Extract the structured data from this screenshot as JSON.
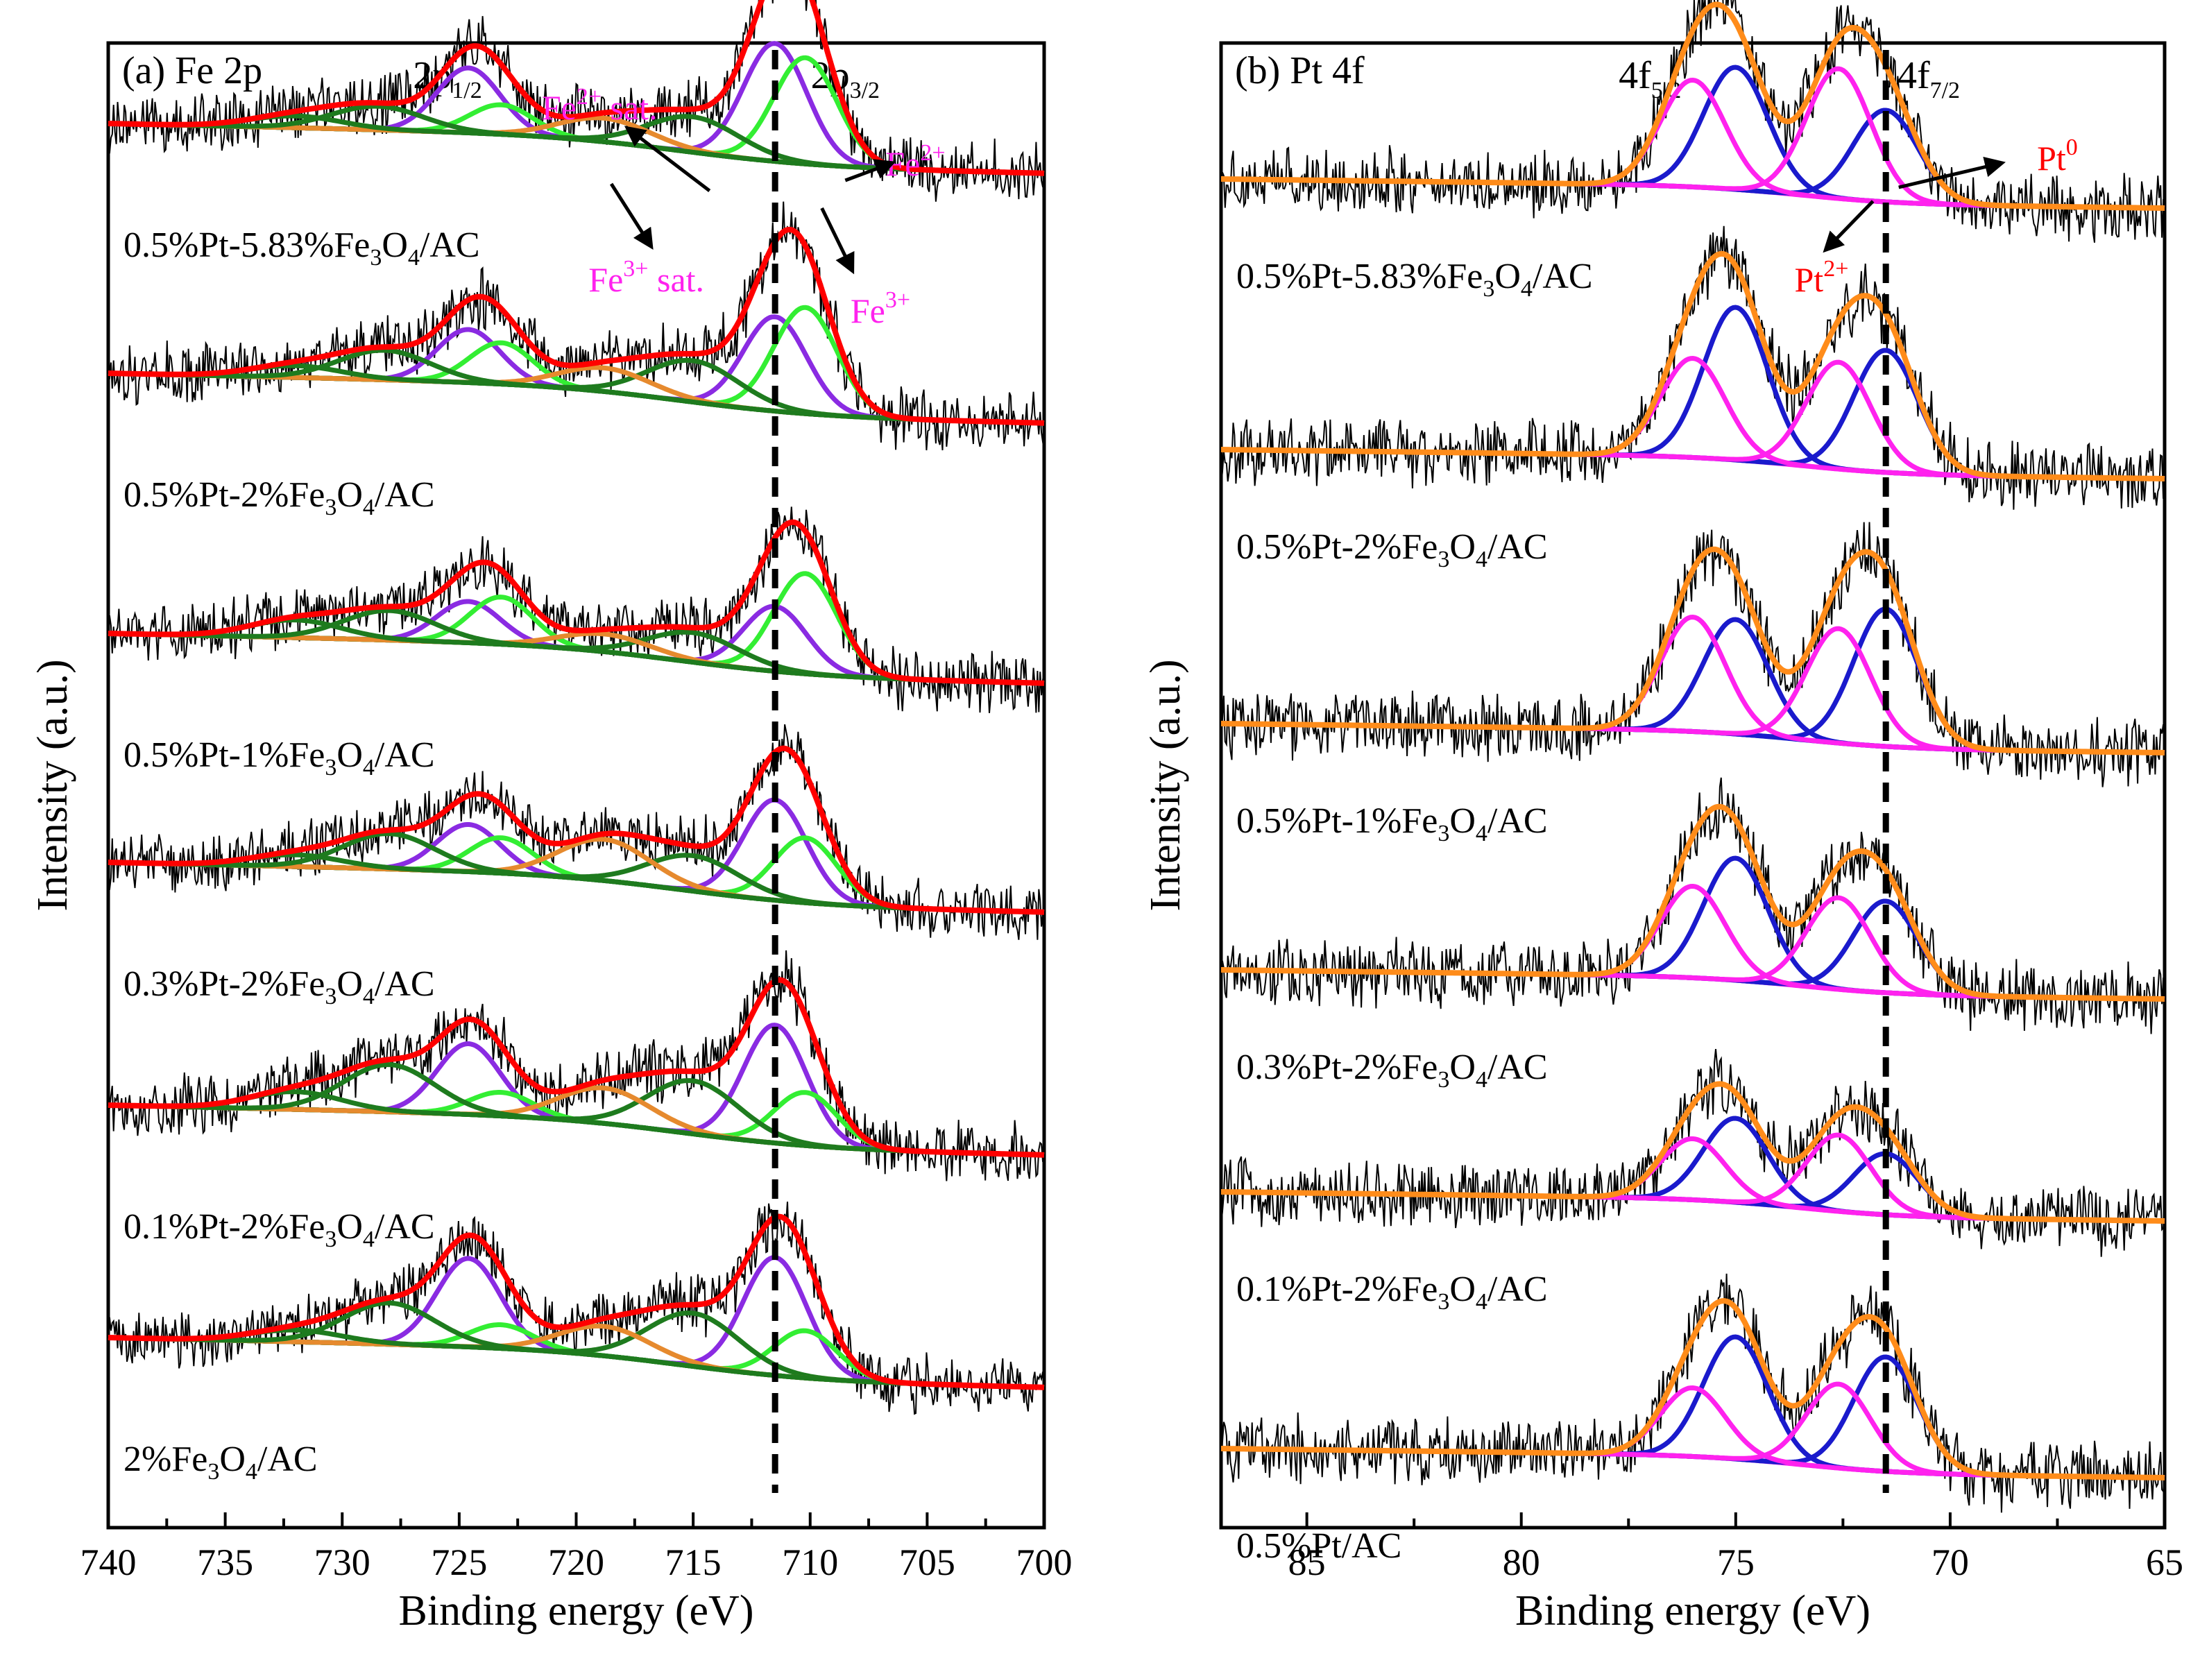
{
  "colors": {
    "raw": "#000000",
    "envelope_a": "#ff0000",
    "envelope_b": "#ff8c1a",
    "background": "#e68a2e",
    "fe2_main": "#8a2be2",
    "fe3_main": "#33ee33",
    "fe_sat": "#1e7b1e",
    "pt0": "#1a1acc",
    "pt2": "#ff22ee",
    "annot_magenta": "#ff22ee",
    "annot_red": "#ff0000"
  },
  "chart_data": [
    {
      "type": "line",
      "panel": "a",
      "title": "(a) Fe 2p",
      "xlabel": "Binding energy (eV)",
      "ylabel": "Intensity (a.u.)",
      "xlim": [
        740,
        700
      ],
      "x_reversed": true,
      "xticks": [
        "740",
        "735",
        "730",
        "725",
        "720",
        "715",
        "710",
        "705",
        "700"
      ],
      "reference_line_x": 711.5,
      "peak_labels": [
        {
          "main": "2p",
          "sub": "1/2",
          "x": 725.5
        },
        {
          "main": "2p",
          "sub": "3/2",
          "x": 708.5
        }
      ],
      "annotations": [
        {
          "main": "Fe",
          "sup": "2+",
          "suffix": " sat.",
          "color": "magenta",
          "x": 719
        },
        {
          "main": "Fe",
          "sup": "3+",
          "suffix": " sat.",
          "color": "magenta",
          "x": 717
        },
        {
          "main": "Fe",
          "sup": "2+",
          "suffix": "",
          "color": "magenta",
          "x": 705.5
        },
        {
          "main": "Fe",
          "sup": "3+",
          "suffix": "",
          "color": "magenta",
          "x": 707
        }
      ],
      "samples": [
        {
          "pre": "0.5%Pt-5.83%Fe",
          "sub": "3",
          "mid": "O",
          "sub2": "4",
          "post": "/AC",
          "peaks": [
            {
              "component": "Fe2+",
              "center": 711.5,
              "height": 1.0
            },
            {
              "component": "Fe3+",
              "center": 710.2,
              "height": 0.9
            },
            {
              "component": "Fe2+",
              "center": 724.6,
              "height": 0.55
            },
            {
              "component": "Fe3+",
              "center": 723.2,
              "height": 0.25
            },
            {
              "component": "sat",
              "center": 715.0,
              "height": 0.3
            },
            {
              "component": "sat",
              "center": 718.8,
              "height": 0.2
            },
            {
              "component": "sat",
              "center": 728.5,
              "height": 0.2
            },
            {
              "component": "sat",
              "center": 732.0,
              "height": 0.1
            }
          ]
        },
        {
          "pre": "0.5%Pt-2%Fe",
          "sub": "3",
          "mid": "O",
          "sub2": "4",
          "post": "/AC",
          "peaks": [
            {
              "component": "Fe2+",
              "center": 711.5,
              "height": 0.8
            },
            {
              "component": "Fe3+",
              "center": 710.2,
              "height": 0.9
            },
            {
              "component": "Fe2+",
              "center": 724.6,
              "height": 0.45
            },
            {
              "component": "Fe3+",
              "center": 723.2,
              "height": 0.35
            },
            {
              "component": "sat",
              "center": 715.0,
              "height": 0.35
            },
            {
              "component": "sat",
              "center": 718.8,
              "height": 0.2
            },
            {
              "component": "sat",
              "center": 728.2,
              "height": 0.25
            },
            {
              "component": "sat",
              "center": 732.0,
              "height": 0.1
            }
          ]
        },
        {
          "pre": "0.5%Pt-1%Fe",
          "sub": "3",
          "mid": "O",
          "sub2": "4",
          "post": "/AC",
          "peaks": [
            {
              "component": "Fe2+",
              "center": 711.5,
              "height": 0.55
            },
            {
              "component": "Fe3+",
              "center": 710.2,
              "height": 0.85
            },
            {
              "component": "Fe2+",
              "center": 724.6,
              "height": 0.35
            },
            {
              "component": "Fe3+",
              "center": 723.2,
              "height": 0.4
            },
            {
              "component": "sat",
              "center": 715.0,
              "height": 0.25
            },
            {
              "component": "sat",
              "center": 718.8,
              "height": 0.15
            },
            {
              "component": "sat",
              "center": 728.0,
              "height": 0.25
            },
            {
              "component": "sat",
              "center": 732.0,
              "height": 0.15
            }
          ]
        },
        {
          "pre": "0.3%Pt-2%Fe",
          "sub": "3",
          "mid": "O",
          "sub2": "4",
          "post": "/AC",
          "peaks": [
            {
              "component": "Fe2+",
              "center": 711.5,
              "height": 0.85
            },
            {
              "component": "Fe3+",
              "center": 710.2,
              "height": 0.55
            },
            {
              "component": "Fe2+",
              "center": 724.6,
              "height": 0.4
            },
            {
              "component": "Fe3+",
              "center": 723.2,
              "height": 0.3
            },
            {
              "component": "sat",
              "center": 715.0,
              "height": 0.3
            },
            {
              "component": "sat",
              "center": 718.8,
              "height": 0.35
            },
            {
              "component": "sat",
              "center": 728.0,
              "height": 0.3
            },
            {
              "component": "sat",
              "center": 732.0,
              "height": 0.1
            }
          ]
        },
        {
          "pre": "0.1%Pt-2%Fe",
          "sub": "3",
          "mid": "O",
          "sub2": "4",
          "post": "/AC",
          "peaks": [
            {
              "component": "Fe2+",
              "center": 711.5,
              "height": 1.0
            },
            {
              "component": "Fe3+",
              "center": 710.2,
              "height": 0.45
            },
            {
              "component": "Fe2+",
              "center": 724.6,
              "height": 0.6
            },
            {
              "component": "Fe3+",
              "center": 723.2,
              "height": 0.2
            },
            {
              "component": "sat",
              "center": 715.0,
              "height": 0.45
            },
            {
              "component": "sat",
              "center": 718.8,
              "height": 0.3
            },
            {
              "component": "sat",
              "center": 728.0,
              "height": 0.4
            },
            {
              "component": "sat",
              "center": 732.0,
              "height": 0.15
            }
          ]
        },
        {
          "pre": "2%Fe",
          "sub": "3",
          "mid": "O",
          "sub2": "4",
          "post": "/AC",
          "peaks": [
            {
              "component": "Fe2+",
              "center": 711.5,
              "height": 1.0
            },
            {
              "component": "Fe3+",
              "center": 710.2,
              "height": 0.4
            },
            {
              "component": "Fe2+",
              "center": 724.6,
              "height": 0.75
            },
            {
              "component": "Fe3+",
              "center": 723.2,
              "height": 0.2
            },
            {
              "component": "sat",
              "center": 715.0,
              "height": 0.45
            },
            {
              "component": "sat",
              "center": 718.8,
              "height": 0.25
            },
            {
              "component": "sat",
              "center": 728.0,
              "height": 0.35
            },
            {
              "component": "sat",
              "center": 732.0,
              "height": 0.1
            }
          ]
        }
      ]
    },
    {
      "type": "line",
      "panel": "b",
      "title": "(b) Pt 4f",
      "xlabel": "Binding energy (eV)",
      "ylabel": "Intensity (a.u.)",
      "xlim": [
        87,
        65
      ],
      "x_reversed": true,
      "xticks": [
        "85",
        "80",
        "75",
        "70",
        "65"
      ],
      "reference_line_x": 71.5,
      "peak_labels": [
        {
          "main": "4f",
          "sub": "5/2",
          "x": 77
        },
        {
          "main": "4f",
          "sub": "7/2",
          "x": 70.5
        }
      ],
      "annotations": [
        {
          "main": "Pt",
          "sup": "0",
          "suffix": "",
          "color": "red",
          "x": 67.5
        },
        {
          "main": "Pt",
          "sup": "2+",
          "suffix": "",
          "color": "red",
          "x": 73
        }
      ],
      "samples": [
        {
          "pre": "0.5%Pt-5.83%Fe",
          "sub": "3",
          "mid": "O",
          "sub2": "4",
          "post": "/AC",
          "peaks": [
            {
              "component": "Pt0",
              "center": 71.5,
              "height": 0.6
            },
            {
              "component": "Pt0",
              "center": 75.0,
              "height": 0.8
            },
            {
              "component": "Pt2+",
              "center": 72.6,
              "height": 0.85
            },
            {
              "component": "Pt2+",
              "center": 76.0,
              "height": 0.7
            }
          ]
        },
        {
          "pre": "0.5%Pt-2%Fe",
          "sub": "3",
          "mid": "O",
          "sub2": "4",
          "post": "/AC",
          "peaks": [
            {
              "component": "Pt0",
              "center": 71.5,
              "height": 0.8
            },
            {
              "component": "Pt0",
              "center": 75.0,
              "height": 1.0
            },
            {
              "component": "Pt2+",
              "center": 72.6,
              "height": 0.7
            },
            {
              "component": "Pt2+",
              "center": 76.0,
              "height": 0.65
            }
          ]
        },
        {
          "pre": "0.5%Pt-1%Fe",
          "sub": "3",
          "mid": "O",
          "sub2": "4",
          "post": "/AC",
          "peaks": [
            {
              "component": "Pt0",
              "center": 71.5,
              "height": 0.9
            },
            {
              "component": "Pt0",
              "center": 75.0,
              "height": 0.75
            },
            {
              "component": "Pt2+",
              "center": 72.6,
              "height": 0.75
            },
            {
              "component": "Pt2+",
              "center": 76.0,
              "height": 0.75
            }
          ]
        },
        {
          "pre": "0.3%Pt-2%Fe",
          "sub": "3",
          "mid": "O",
          "sub2": "4",
          "post": "/AC",
          "peaks": [
            {
              "component": "Pt0",
              "center": 71.5,
              "height": 0.6
            },
            {
              "component": "Pt0",
              "center": 75.0,
              "height": 0.8
            },
            {
              "component": "Pt2+",
              "center": 72.6,
              "height": 0.6
            },
            {
              "component": "Pt2+",
              "center": 76.0,
              "height": 0.6
            }
          ]
        },
        {
          "pre": "0.1%Pt-2%Fe",
          "sub": "3",
          "mid": "O",
          "sub2": "4",
          "post": "/AC",
          "peaks": [
            {
              "component": "Pt0",
              "center": 71.5,
              "height": 0.4
            },
            {
              "component": "Pt0",
              "center": 75.0,
              "height": 0.55
            },
            {
              "component": "Pt2+",
              "center": 72.6,
              "height": 0.5
            },
            {
              "component": "Pt2+",
              "center": 76.0,
              "height": 0.4
            }
          ]
        },
        {
          "pre": "0.5%Pt/AC",
          "sub": "",
          "mid": "",
          "sub2": "",
          "post": "",
          "peaks": [
            {
              "component": "Pt0",
              "center": 71.5,
              "height": 0.75
            },
            {
              "component": "Pt0",
              "center": 75.0,
              "height": 0.8
            },
            {
              "component": "Pt2+",
              "center": 72.6,
              "height": 0.55
            },
            {
              "component": "Pt2+",
              "center": 76.0,
              "height": 0.45
            }
          ]
        }
      ]
    }
  ]
}
